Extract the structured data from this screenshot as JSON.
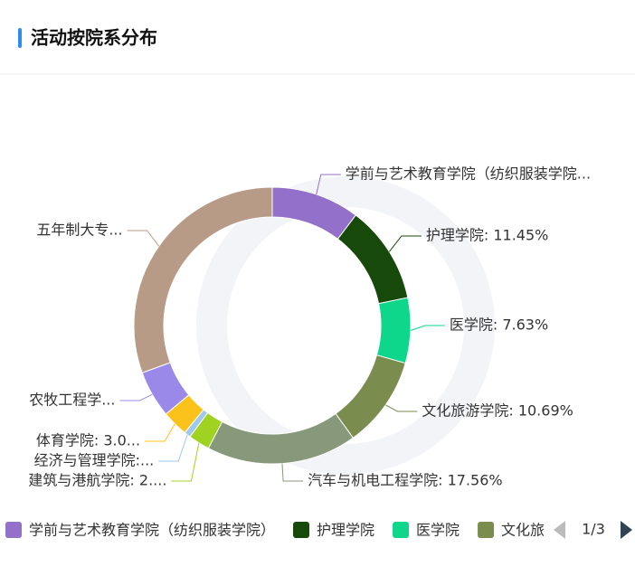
{
  "header": {
    "title": "活动按院系分布"
  },
  "chart_data": {
    "type": "donut",
    "categories": [
      "学前与艺术教育学院（纺织服装学院）",
      "护理学院",
      "医学院",
      "文化旅游学院",
      "汽车与机电工程学院",
      "建筑与港航学院",
      "经济与管理学院",
      "体育学院",
      null,
      null
    ],
    "values": [
      10.31,
      11.45,
      7.63,
      10.69,
      17.56,
      2.5,
      0.76,
      3.05,
      5.5,
      30.55
    ],
    "value_labels": [
      "学前与艺术教育学院（纺织服装学院...",
      "护理学院: 11.45%",
      "医学院: 7.63%",
      "文化旅游学院: 10.69%",
      "汽车与机电工程学院: 17.56%",
      "建筑与港航学院: 2....",
      "经济与管理学院:...",
      "体育学院: 3.0...",
      "农牧工程学...",
      "五年制大专..."
    ],
    "colors": [
      "#9370c9",
      "#174a0a",
      "#0ed68a",
      "#7a8d4e",
      "#87997a",
      "#a0d321",
      "#9ec9ec",
      "#fcc21c",
      "#9b89ea",
      "#b89b87"
    ],
    "legend_page": "1/3"
  }
}
